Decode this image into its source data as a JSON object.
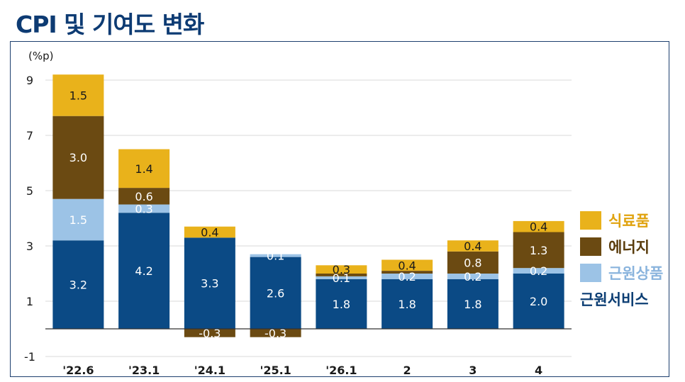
{
  "title": "CPI 및 기여도 변화",
  "chart_data": {
    "type": "bar",
    "stacked": true,
    "unit_label": "(%p)",
    "categories": [
      "'22.6",
      "'23.1",
      "'24.1",
      "'25.1",
      "'26.1",
      "2",
      "3",
      "4"
    ],
    "series": [
      {
        "name": "근원서비스",
        "color": "#0b4a85",
        "label_color": "#ffffff",
        "values": [
          3.2,
          4.2,
          3.3,
          2.6,
          1.8,
          1.8,
          1.8,
          2.0
        ]
      },
      {
        "name": "근원상품",
        "color": "#9cc3e6",
        "label_color": "#ffffff",
        "values": [
          1.5,
          0.3,
          0.0,
          0.1,
          0.1,
          0.2,
          0.2,
          0.2
        ],
        "labels": [
          "1.5",
          "0.3",
          "",
          "0.1",
          "0.1",
          "0.2",
          "0.2",
          "0.2"
        ]
      },
      {
        "name": "에너지",
        "color": "#6b4a12",
        "label_color": "#ffffff",
        "values": [
          3.0,
          0.6,
          -0.3,
          -0.3,
          0.1,
          0.1,
          0.8,
          1.3
        ],
        "labels": [
          "3.0",
          "0.6",
          "-0.3",
          "-0.3",
          "",
          "",
          "0.8",
          "1.3"
        ]
      },
      {
        "name": "식료품",
        "color": "#e9b21b",
        "label_color": "#1a1a1a",
        "values": [
          1.5,
          1.4,
          0.4,
          0.0,
          0.3,
          0.4,
          0.4,
          0.4
        ],
        "labels": [
          "1.5",
          "1.4",
          "0.4",
          "",
          "0.3",
          "0.4",
          "0.4",
          "0.4"
        ]
      }
    ],
    "yticks": [
      9,
      7,
      5,
      3,
      1,
      -1
    ],
    "ylim": [
      -1.2,
      9.2
    ],
    "grid": true,
    "legend_position": "right"
  },
  "legend": {
    "items": [
      {
        "label": "식료품",
        "color": "#e9b21b",
        "text_color": "#e0a30f",
        "swatch": true
      },
      {
        "label": "에너지",
        "color": "#6b4a12",
        "text_color": "#5a3c0c",
        "swatch": true
      },
      {
        "label": "근원상품",
        "color": "#9cc3e6",
        "text_color": "#8ab4dd",
        "swatch": true
      },
      {
        "label": "근원서비스",
        "color": "#0b4a85",
        "text_color": "#0b3d73",
        "swatch": false
      }
    ]
  }
}
